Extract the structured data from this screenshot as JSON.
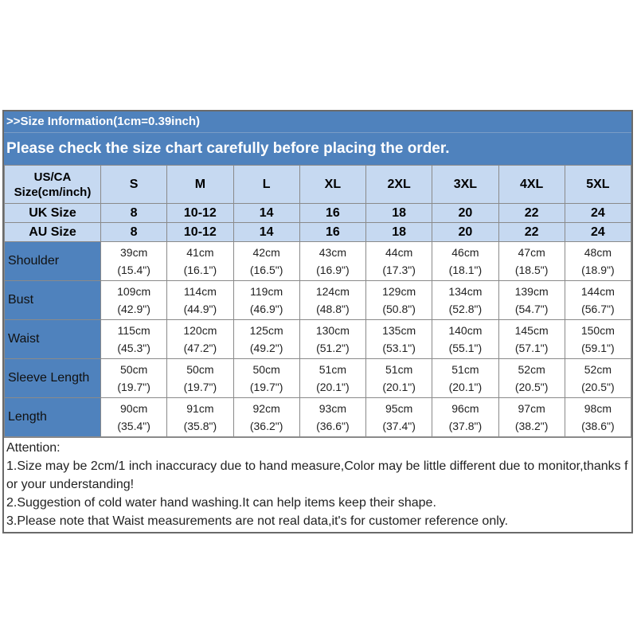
{
  "header": {
    "line1": ">>Size Information(1cm=0.39inch)",
    "line2": "Please check the size chart carefully before placing the order."
  },
  "size_row": {
    "label_line1": "US/CA",
    "label_line2": "Size(cm/inch)",
    "sizes": [
      "S",
      "M",
      "L",
      "XL",
      "2XL",
      "3XL",
      "4XL",
      "5XL"
    ]
  },
  "uk_row": {
    "label": "UK Size",
    "values": [
      "8",
      "10-12",
      "14",
      "16",
      "18",
      "20",
      "22",
      "24"
    ]
  },
  "au_row": {
    "label": "AU Size",
    "values": [
      "8",
      "10-12",
      "14",
      "16",
      "18",
      "20",
      "22",
      "24"
    ]
  },
  "measurements": [
    {
      "label": "Shoulder",
      "cm": [
        "39cm",
        "41cm",
        "42cm",
        "43cm",
        "44cm",
        "46cm",
        "47cm",
        "48cm"
      ],
      "inch": [
        "(15.4\")",
        "(16.1\")",
        "(16.5\")",
        "(16.9\")",
        "(17.3\")",
        "(18.1\")",
        "(18.5\")",
        "(18.9\")"
      ]
    },
    {
      "label": "Bust",
      "cm": [
        "109cm",
        "114cm",
        "119cm",
        "124cm",
        "129cm",
        "134cm",
        "139cm",
        "144cm"
      ],
      "inch": [
        "(42.9\")",
        "(44.9\")",
        "(46.9\")",
        "(48.8\")",
        "(50.8\")",
        "(52.8\")",
        "(54.7\")",
        "(56.7\")"
      ]
    },
    {
      "label": "Waist",
      "cm": [
        "115cm",
        "120cm",
        "125cm",
        "130cm",
        "135cm",
        "140cm",
        "145cm",
        "150cm"
      ],
      "inch": [
        "(45.3\")",
        "(47.2\")",
        "(49.2\")",
        "(51.2\")",
        "(53.1\")",
        "(55.1\")",
        "(57.1\")",
        "(59.1\")"
      ]
    },
    {
      "label": "Sleeve Length",
      "cm": [
        "50cm",
        "50cm",
        "50cm",
        "51cm",
        "51cm",
        "51cm",
        "52cm",
        "52cm"
      ],
      "inch": [
        "(19.7\")",
        "(19.7\")",
        "(19.7\")",
        "(20.1\")",
        "(20.1\")",
        "(20.1\")",
        "(20.5\")",
        "(20.5\")"
      ]
    },
    {
      "label": "Length",
      "cm": [
        "90cm",
        "91cm",
        "92cm",
        "93cm",
        "95cm",
        "96cm",
        "97cm",
        "98cm"
      ],
      "inch": [
        "(35.4\")",
        "(35.8\")",
        "(36.2\")",
        "(36.6\")",
        "(37.4\")",
        "(37.8\")",
        "(38.2\")",
        "(38.6\")"
      ]
    }
  ],
  "notes": {
    "title": "Attention:",
    "items": [
      "1.Size may be 2cm/1 inch inaccuracy due to hand measure,Color may be little different due to monitor,thanks for your understanding!",
      "2.Suggestion of cold water hand washing.It can help items keep their shape.",
      "3.Please note that Waist measurements are not real data,it's for customer reference only."
    ]
  },
  "colors": {
    "header_blue": "#4f82bd",
    "light_blue": "#c6d9f1"
  }
}
